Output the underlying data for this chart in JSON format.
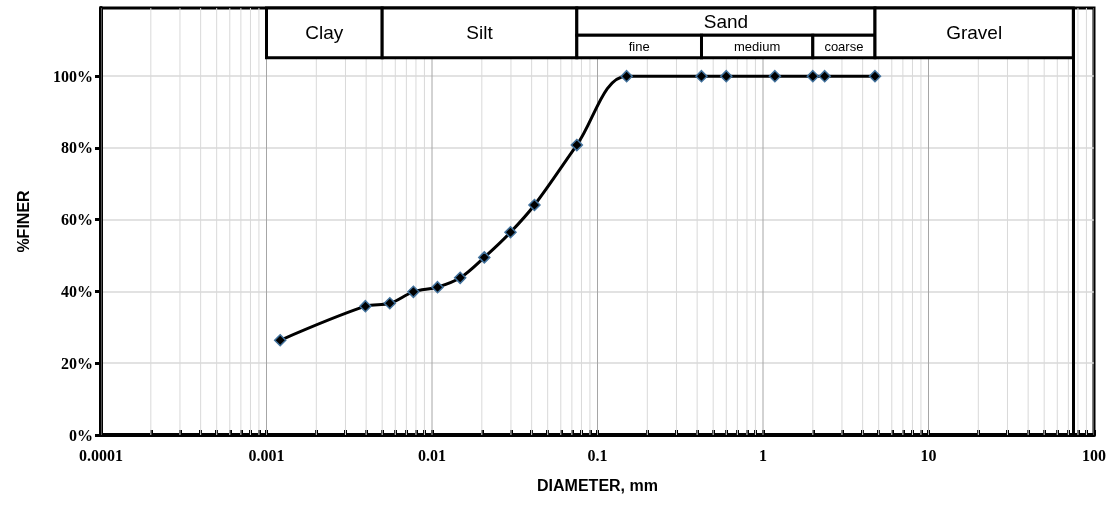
{
  "chart_data": {
    "type": "line",
    "xlabel": "DIAMETER, mm",
    "ylabel": "%FINER",
    "x": [
      0.00121,
      0.00396,
      0.00556,
      0.00772,
      0.0108,
      0.0148,
      0.0207,
      0.0298,
      0.0416,
      0.075,
      0.15,
      0.425,
      0.6,
      1.18,
      2.0,
      2.36,
      4.75
    ],
    "series": [
      {
        "color": "#000000",
        "values": [
          26.4,
          35.9,
          36.7,
          39.9,
          41.2,
          43.8,
          49.5,
          56.5,
          64.1,
          80.8,
          100,
          100,
          100,
          100,
          100,
          100,
          100
        ]
      }
    ],
    "log": "x",
    "xlim": [
      0.0001,
      100
    ],
    "xticks": [
      0.0001,
      0.001,
      0.01,
      0.1,
      1,
      10,
      100
    ],
    "ylim": [
      0,
      119
    ],
    "yticks": [
      {
        "value": 0,
        "label": "0%"
      },
      {
        "value": 20,
        "label": "20%"
      },
      {
        "value": 40,
        "label": "40%"
      },
      {
        "value": 60,
        "label": "60%"
      },
      {
        "value": 80,
        "label": "80%"
      },
      {
        "value": 100,
        "label": "100%"
      }
    ],
    "grid": true,
    "marker": "diamond",
    "line_style": "solid",
    "bands": [
      {
        "axis": "x",
        "from": 0.001,
        "to": 0.005,
        "label": "Clay",
        "color": "#ffffff"
      },
      {
        "axis": "x",
        "from": 0.005,
        "to": 0.075,
        "label": "Silt",
        "color": "#ffffff"
      },
      {
        "axis": "x",
        "from": 0.075,
        "to": 4.75,
        "label": "Sand",
        "color": "#ffffff"
      },
      {
        "axis": "x",
        "from": 0.075,
        "to": 0.425,
        "label": "fine",
        "color": "#ffffff"
      },
      {
        "axis": "x",
        "from": 0.425,
        "to": 2.0,
        "label": "medium",
        "color": "#ffffff"
      },
      {
        "axis": "x",
        "from": 2.0,
        "to": 4.75,
        "label": "coarse",
        "color": "#ffffff"
      },
      {
        "axis": "x",
        "from": 4.75,
        "to": 75,
        "label": "Gravel",
        "color": "#ffffff"
      }
    ],
    "ref_lines": [
      {
        "axis": "x",
        "value": 75
      }
    ]
  }
}
